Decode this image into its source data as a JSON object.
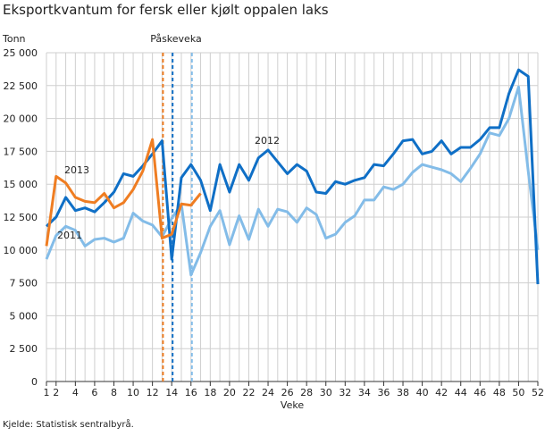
{
  "title": "Eksportkvantum for fersk eller kjølt oppalen laks",
  "source": "Kjelde: Statistisk sentralbyrå.",
  "chart_data": {
    "type": "line",
    "title": "Eksportkvantum for fersk eller kjølt oppalen laks",
    "ylabel": "Tonn",
    "xlabel": "Veke",
    "ylim": [
      0,
      25000
    ],
    "xlim": [
      1,
      52
    ],
    "yticks": [
      0,
      2500,
      5000,
      7500,
      10000,
      12500,
      15000,
      17500,
      20000,
      22500,
      25000
    ],
    "ytick_labels": [
      "0",
      "2 500",
      "5 000",
      "7 500",
      "10 000",
      "12 500",
      "15 000",
      "17 500",
      "20 000",
      "22 500",
      "25 000"
    ],
    "xticks": [
      1,
      2,
      4,
      6,
      8,
      10,
      12,
      14,
      16,
      18,
      20,
      22,
      24,
      26,
      28,
      30,
      32,
      34,
      36,
      38,
      40,
      42,
      44,
      46,
      48,
      50,
      52
    ],
    "grid": true,
    "series": [
      {
        "name": "2011",
        "color": "#83bce8",
        "values": [
          9300,
          11100,
          11800,
          11500,
          10300,
          10800,
          10900,
          10600,
          10900,
          12800,
          12200,
          11900,
          11000,
          12400,
          13500,
          8100,
          9800,
          11800,
          13000,
          10400,
          12600,
          10800,
          13100,
          11800,
          13100,
          12900,
          12100,
          13200,
          12700,
          10900,
          11200,
          12100,
          12600,
          13800,
          13800,
          14800,
          14600,
          15000,
          15900,
          16500,
          16300,
          16100,
          15800,
          15200,
          16200,
          17300,
          18900,
          18700,
          20000,
          22400,
          16000,
          10000
        ]
      },
      {
        "name": "2012",
        "color": "#0f6fc6",
        "values": [
          11800,
          12500,
          14000,
          13000,
          13200,
          12900,
          13600,
          14400,
          15800,
          15600,
          16400,
          17300,
          18300,
          9300,
          15500,
          16500,
          15300,
          13000,
          16500,
          14400,
          16500,
          15300,
          17000,
          17600,
          16700,
          15800,
          16500,
          16000,
          14400,
          14300,
          15200,
          15000,
          15300,
          15500,
          16500,
          16400,
          17300,
          18300,
          18400,
          17300,
          17500,
          18300,
          17300,
          17800,
          17800,
          18400,
          19300,
          19300,
          21900,
          23700,
          23200,
          7400
        ]
      },
      {
        "name": "2013",
        "color": "#ef7d22",
        "values": [
          10300,
          15600,
          15100,
          14000,
          13700,
          13600,
          14300,
          13200,
          13600,
          14600,
          16000,
          18400,
          10900,
          11200,
          13500,
          13400,
          14300
        ]
      }
    ],
    "annotations": [
      {
        "text": "Påskeveka",
        "markers": [
          {
            "week": 13,
            "color": "#ef7d22"
          },
          {
            "week": 14,
            "color": "#0f6fc6"
          },
          {
            "week": 16,
            "color": "#83bce8"
          }
        ]
      }
    ]
  }
}
